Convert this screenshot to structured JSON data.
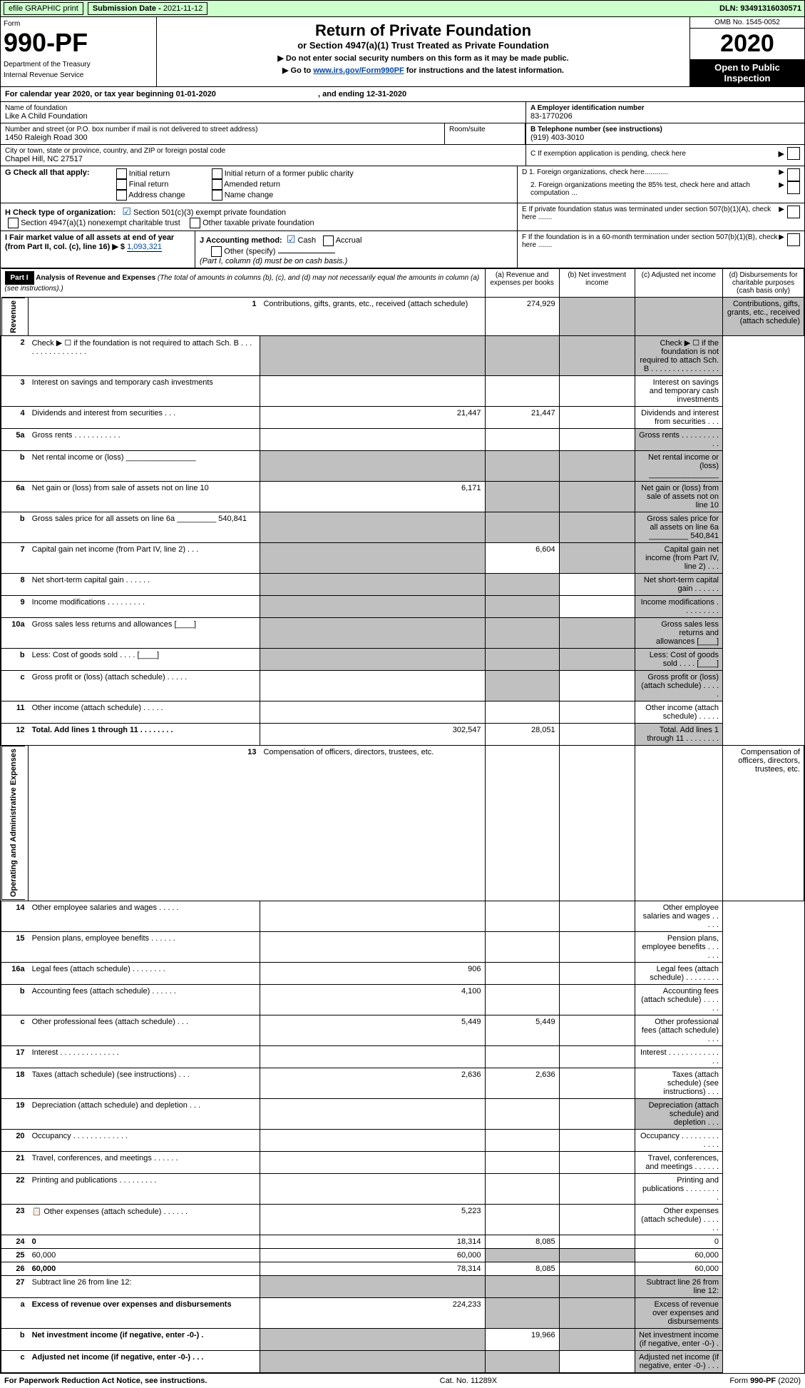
{
  "topbar": {
    "efile": "efile GRAPHIC print",
    "subdate_label": "Submission Date - ",
    "subdate": "2021-11-12",
    "dln_label": "DLN: ",
    "dln": "93491316030571"
  },
  "header": {
    "form_label": "Form",
    "form_num": "990-PF",
    "dept1": "Department of the Treasury",
    "dept2": "Internal Revenue Service",
    "title": "Return of Private Foundation",
    "subtitle": "or Section 4947(a)(1) Trust Treated as Private Foundation",
    "note1": "▶ Do not enter social security numbers on this form as it may be made public.",
    "note2_a": "▶ Go to ",
    "note2_link": "www.irs.gov/Form990PF",
    "note2_b": " for instructions and the latest information.",
    "omb": "OMB No. 1545-0052",
    "year": "2020",
    "open": "Open to Public Inspection"
  },
  "cal": {
    "a": "For calendar year 2020, or tax year beginning ",
    "b": "01-01-2020",
    "c": " , and ending ",
    "d": "12-31-2020"
  },
  "info": {
    "name_label": "Name of foundation",
    "name": "Like A Child Foundation",
    "addr_label": "Number and street (or P.O. box number if mail is not delivered to street address)",
    "addr": "1450 Raleigh Road 300",
    "room": "Room/suite",
    "city_label": "City or town, state or province, country, and ZIP or foreign postal code",
    "city": "Chapel Hill, NC  27517",
    "A_label": "A Employer identification number",
    "A": "83-1770206",
    "B_label": "B Telephone number (see instructions)",
    "B": "(919) 403-3010",
    "C": "C If exemption application is pending, check here",
    "D1": "D 1. Foreign organizations, check here............",
    "D2": "2. Foreign organizations meeting the 85% test, check here and attach computation ...",
    "E": "E  If private foundation status was terminated under section 507(b)(1)(A), check here .......",
    "F": "F  If the foundation is in a 60-month termination under section 507(b)(1)(B), check here ......."
  },
  "G": {
    "label": "G Check all that apply:",
    "opts": [
      "Initial return",
      "Final return",
      "Address change",
      "Initial return of a former public charity",
      "Amended return",
      "Name change"
    ]
  },
  "H": {
    "label": "H Check type of organization:",
    "a": "Section 501(c)(3) exempt private foundation",
    "b": "Section 4947(a)(1) nonexempt charitable trust",
    "c": "Other taxable private foundation"
  },
  "I": {
    "label": "I Fair market value of all assets at end of year (from Part II, col. (c), line 16) ▶ $",
    "val": "1,093,321"
  },
  "J": {
    "label": "J Accounting method:",
    "cash": "Cash",
    "accrual": "Accrual",
    "other": "Other (specify)",
    "note": "(Part I, column (d) must be on cash basis.)"
  },
  "part1": {
    "label": "Part I",
    "title": "Analysis of Revenue and Expenses",
    "title_note": " (The total of amounts in columns (b), (c), and (d) may not necessarily equal the amounts in column (a) (see instructions).)",
    "cols": [
      "(a)  Revenue and expenses per books",
      "(b)  Net investment income",
      "(c)  Adjusted net income",
      "(d)  Disbursements for charitable purposes (cash basis only)"
    ]
  },
  "sidelabels": {
    "rev": "Revenue",
    "exp": "Operating and Administrative Expenses"
  },
  "rows": [
    {
      "n": "1",
      "d": "Contributions, gifts, grants, etc., received (attach schedule)",
      "a": "274,929",
      "gray": [
        "b",
        "c",
        "d"
      ]
    },
    {
      "n": "2",
      "d": "Check ▶ ☐ if the foundation is not required to attach Sch. B   .  .  .  .  .  .  .  .  .  .  .  .  .  .  .  .",
      "gray": [
        "a",
        "b",
        "c",
        "d"
      ]
    },
    {
      "n": "3",
      "d": "Interest on savings and temporary cash investments"
    },
    {
      "n": "4",
      "d": "Dividends and interest from securities   .   .   .",
      "a": "21,447",
      "b": "21,447"
    },
    {
      "n": "5a",
      "d": "Gross rents   .   .   .   .   .   .   .   .   .   .   .",
      "gray": [
        "d"
      ]
    },
    {
      "n": "b",
      "d": "Net rental income or (loss) ________________",
      "gray": [
        "a",
        "b",
        "c",
        "d"
      ]
    },
    {
      "n": "6a",
      "d": "Net gain or (loss) from sale of assets not on line 10",
      "a": "6,171",
      "gray": [
        "b",
        "c",
        "d"
      ]
    },
    {
      "n": "b",
      "d": "Gross sales price for all assets on line 6a _________ 540,841",
      "gray": [
        "a",
        "b",
        "c",
        "d"
      ]
    },
    {
      "n": "7",
      "d": "Capital gain net income (from Part IV, line 2)   .   .   .",
      "b": "6,604",
      "gray": [
        "a",
        "c",
        "d"
      ]
    },
    {
      "n": "8",
      "d": "Net short-term capital gain   .   .   .   .   .   .",
      "gray": [
        "a",
        "b",
        "d"
      ]
    },
    {
      "n": "9",
      "d": "Income modifications   .   .   .   .   .   .   .   .   .",
      "gray": [
        "a",
        "b",
        "d"
      ]
    },
    {
      "n": "10a",
      "d": "Gross sales less returns and allowances  [____]",
      "gray": [
        "a",
        "b",
        "c",
        "d"
      ]
    },
    {
      "n": "b",
      "d": "Less: Cost of goods sold   .   .   .   .   [____]",
      "gray": [
        "a",
        "b",
        "c",
        "d"
      ]
    },
    {
      "n": "c",
      "d": "Gross profit or (loss) (attach schedule)   .   .   .   .   .",
      "gray": [
        "b",
        "d"
      ]
    },
    {
      "n": "11",
      "d": "Other income (attach schedule)   .   .   .   .   ."
    },
    {
      "n": "12",
      "d": "Total. Add lines 1 through 11   .   .   .   .   .   .   .   .",
      "a": "302,547",
      "b": "28,051",
      "bold": true,
      "gray": [
        "d"
      ]
    },
    {
      "n": "13",
      "d": "Compensation of officers, directors, trustees, etc."
    },
    {
      "n": "14",
      "d": "Other employee salaries and wages   .   .   .   .   ."
    },
    {
      "n": "15",
      "d": "Pension plans, employee benefits   .   .   .   .   .   ."
    },
    {
      "n": "16a",
      "d": "Legal fees (attach schedule)   .   .   .   .   .   .   .   .",
      "a": "906"
    },
    {
      "n": "b",
      "d": "Accounting fees (attach schedule)   .   .   .   .   .   .",
      "a": "4,100"
    },
    {
      "n": "c",
      "d": "Other professional fees (attach schedule)   .   .   .",
      "a": "5,449",
      "b": "5,449"
    },
    {
      "n": "17",
      "d": "Interest   .   .   .   .   .   .   .   .   .   .   .   .   .   ."
    },
    {
      "n": "18",
      "d": "Taxes (attach schedule) (see instructions)   .   .   .",
      "a": "2,636",
      "b": "2,636"
    },
    {
      "n": "19",
      "d": "Depreciation (attach schedule) and depletion   .   .   .",
      "gray": [
        "d"
      ]
    },
    {
      "n": "20",
      "d": "Occupancy   .   .   .   .   .   .   .   .   .   .   .   .   ."
    },
    {
      "n": "21",
      "d": "Travel, conferences, and meetings   .   .   .   .   .   ."
    },
    {
      "n": "22",
      "d": "Printing and publications   .   .   .   .   .   .   .   .   ."
    },
    {
      "n": "23",
      "d": "Other expenses (attach schedule)   .   .   .   .   .   .",
      "icon": true,
      "a": "5,223"
    },
    {
      "n": "24",
      "d": "0",
      "a": "18,314",
      "b": "8,085",
      "bold": true
    },
    {
      "n": "25",
      "d": "60,000",
      "a": "60,000",
      "gray": [
        "b",
        "c"
      ]
    },
    {
      "n": "26",
      "d": "60,000",
      "a": "78,314",
      "b": "8,085",
      "bold": true
    },
    {
      "n": "27",
      "d": "Subtract line 26 from line 12:",
      "gray": [
        "a",
        "b",
        "c",
        "d"
      ]
    },
    {
      "n": "a",
      "d": "Excess of revenue over expenses and disbursements",
      "a": "224,233",
      "bold": true,
      "gray": [
        "b",
        "c",
        "d"
      ]
    },
    {
      "n": "b",
      "d": "Net investment income (if negative, enter -0-)   .",
      "b": "19,966",
      "bold": true,
      "gray": [
        "a",
        "c",
        "d"
      ]
    },
    {
      "n": "c",
      "d": "Adjusted net income (if negative, enter -0-)   .   .   .",
      "bold": true,
      "gray": [
        "a",
        "b",
        "d"
      ]
    }
  ],
  "sections": {
    "rev_end": 15,
    "exp_start": 15
  },
  "footer": {
    "left": "For Paperwork Reduction Act Notice, see instructions.",
    "mid": "Cat. No. 11289X",
    "right": "Form 990-PF (2020)"
  }
}
